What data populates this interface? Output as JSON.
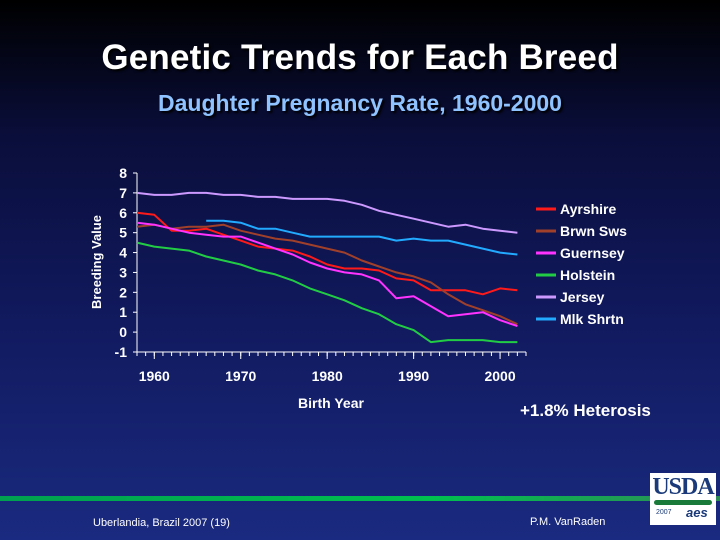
{
  "slide": {
    "title": "Genetic Trends for Each Breed",
    "subtitle": "Daughter Pregnancy Rate, 1960-2000",
    "annotation": "+1.8% Heterosis",
    "footer_left": "Uberlandia, Brazil 2007 (19)",
    "footer_right": "P.M. VanRaden",
    "logo_text": "USDA",
    "logo_year": "2007",
    "logo_aes": "aes"
  },
  "chart_data": {
    "type": "line",
    "title": "Daughter Pregnancy Rate, 1960-2000",
    "xlabel": "Birth Year",
    "ylabel": "Breeding Value",
    "xlim": [
      1958,
      2003
    ],
    "ylim": [
      -1,
      8
    ],
    "x_ticks": [
      1960,
      1970,
      1980,
      1990,
      2000
    ],
    "y_ticks": [
      8,
      7,
      6,
      5,
      4,
      3,
      2,
      1,
      0,
      -1
    ],
    "x_tick_labels": [
      "1960",
      "1970",
      "1980",
      "1990",
      "2000"
    ],
    "y_tick_labels": [
      "8",
      "7",
      "6",
      "5",
      "4",
      "3",
      "2",
      "1",
      "0",
      "-1"
    ],
    "legend_position": "right",
    "series": [
      {
        "name": "Ayrshire",
        "color": "#ff1a1a",
        "x": [
          1958,
          1960,
          1962,
          1964,
          1966,
          1968,
          1970,
          1972,
          1974,
          1976,
          1978,
          1980,
          1982,
          1984,
          1986,
          1988,
          1990,
          1992,
          1994,
          1996,
          1998,
          2000,
          2002
        ],
        "y": [
          6.0,
          5.9,
          5.1,
          5.1,
          5.2,
          4.9,
          4.6,
          4.3,
          4.2,
          4.1,
          3.8,
          3.4,
          3.2,
          3.2,
          3.1,
          2.7,
          2.6,
          2.1,
          2.1,
          2.1,
          1.9,
          2.2,
          2.1
        ]
      },
      {
        "name": "Brwn Sws",
        "color": "#a0402a",
        "x": [
          1958,
          1960,
          1962,
          1964,
          1966,
          1968,
          1970,
          1972,
          1974,
          1976,
          1978,
          1980,
          1982,
          1984,
          1986,
          1988,
          1990,
          1992,
          1994,
          1996,
          1998,
          2000,
          2002
        ],
        "y": [
          5.3,
          5.4,
          5.2,
          5.3,
          5.3,
          5.4,
          5.1,
          4.9,
          4.7,
          4.6,
          4.4,
          4.2,
          4.0,
          3.6,
          3.3,
          3.0,
          2.8,
          2.5,
          1.9,
          1.4,
          1.1,
          0.8,
          0.4
        ]
      },
      {
        "name": "Guernsey",
        "color": "#ff33ff",
        "x": [
          1958,
          1960,
          1962,
          1964,
          1966,
          1968,
          1970,
          1972,
          1974,
          1976,
          1978,
          1980,
          1982,
          1984,
          1986,
          1988,
          1990,
          1992,
          1994,
          1996,
          1998,
          2000,
          2002
        ],
        "y": [
          5.5,
          5.4,
          5.2,
          5.0,
          4.9,
          4.8,
          4.8,
          4.5,
          4.2,
          3.9,
          3.5,
          3.2,
          3.0,
          2.9,
          2.6,
          1.7,
          1.8,
          1.3,
          0.8,
          0.9,
          1.0,
          0.6,
          0.3
        ]
      },
      {
        "name": "Holstein",
        "color": "#22cc44",
        "x": [
          1958,
          1960,
          1962,
          1964,
          1966,
          1968,
          1970,
          1972,
          1974,
          1976,
          1978,
          1980,
          1982,
          1984,
          1986,
          1988,
          1990,
          1992,
          1994,
          1996,
          1998,
          2000,
          2002
        ],
        "y": [
          4.5,
          4.3,
          4.2,
          4.1,
          3.8,
          3.6,
          3.4,
          3.1,
          2.9,
          2.6,
          2.2,
          1.9,
          1.6,
          1.2,
          0.9,
          0.4,
          0.1,
          -0.5,
          -0.4,
          -0.4,
          -0.4,
          -0.5,
          -0.5
        ]
      },
      {
        "name": "Jersey",
        "color": "#cc99ff",
        "x": [
          1958,
          1960,
          1962,
          1964,
          1966,
          1968,
          1970,
          1972,
          1974,
          1976,
          1978,
          1980,
          1982,
          1984,
          1986,
          1988,
          1990,
          1992,
          1994,
          1996,
          1998,
          2000,
          2002
        ],
        "y": [
          7.0,
          6.9,
          6.9,
          7.0,
          7.0,
          6.9,
          6.9,
          6.8,
          6.8,
          6.7,
          6.7,
          6.7,
          6.6,
          6.4,
          6.1,
          5.9,
          5.7,
          5.5,
          5.3,
          5.4,
          5.2,
          5.1,
          5.0
        ]
      },
      {
        "name": "Mlk Shrtn",
        "color": "#22aaff",
        "x": [
          1966,
          1968,
          1970,
          1972,
          1974,
          1976,
          1978,
          1980,
          1982,
          1984,
          1986,
          1988,
          1990,
          1992,
          1994,
          1996,
          1998,
          2000,
          2002
        ],
        "y": [
          5.6,
          5.6,
          5.5,
          5.2,
          5.2,
          5.0,
          4.8,
          4.8,
          4.8,
          4.8,
          4.8,
          4.6,
          4.7,
          4.6,
          4.6,
          4.4,
          4.2,
          4.0,
          3.9
        ]
      }
    ]
  }
}
